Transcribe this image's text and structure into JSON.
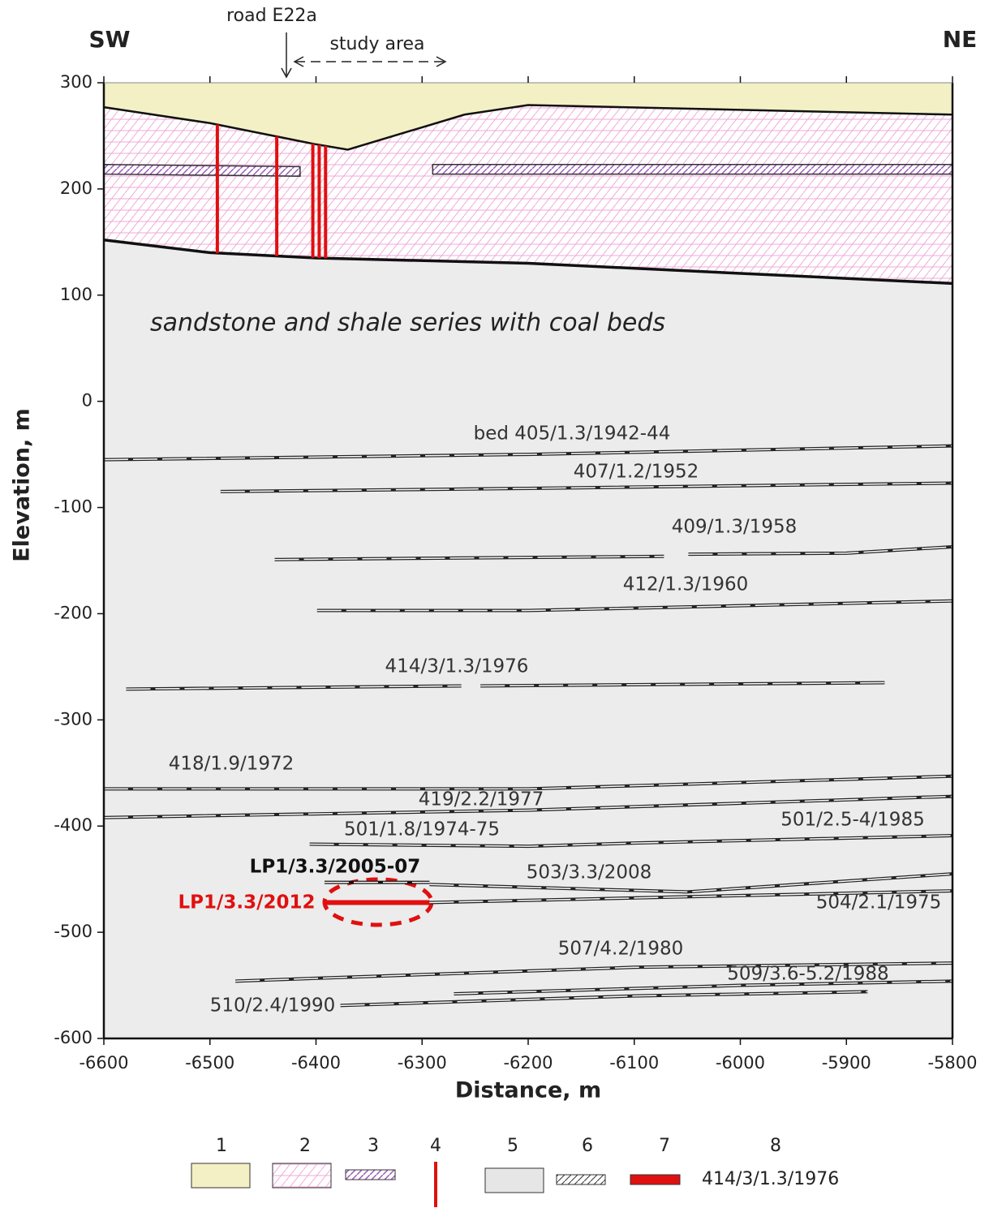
{
  "chart_data": {
    "type": "cross-section",
    "x_label": "Distance, m",
    "y_label": "Elevation, m",
    "left_label": "SW",
    "right_label": "NE",
    "road_label": "road E22a",
    "study_area_label": "study area",
    "series_label": "sandstone and shale series with coal beds",
    "xlim": [
      -6600,
      -5800
    ],
    "ylim": [
      -600,
      300
    ],
    "xticks": [
      -6600,
      -6500,
      -6400,
      -6300,
      -6200,
      -6100,
      -6000,
      -5900,
      -5800
    ],
    "yticks": [
      -600,
      -500,
      -400,
      -300,
      -200,
      -100,
      0,
      100,
      200,
      300
    ],
    "ground_surface": {
      "x": [
        -6600,
        -6500,
        -6400,
        -6370,
        -6260,
        -6200,
        -5800
      ],
      "values": [
        277,
        262,
        242,
        237,
        270,
        279,
        270
      ]
    },
    "layer_base": {
      "x": [
        -6600,
        -6500,
        -6400,
        -6200,
        -5800
      ],
      "values": [
        152,
        140,
        135,
        130,
        111
      ]
    },
    "sandstone_bands": [
      {
        "x": [
          -6600,
          -6415
        ],
        "top": [
          223,
          221
        ],
        "bottom": [
          214,
          212
        ]
      },
      {
        "x": [
          -6290,
          -5800
        ],
        "top": [
          223,
          223
        ],
        "bottom": [
          214,
          214
        ]
      }
    ],
    "boreholes": {
      "x": [
        -6493,
        -6437,
        -6403,
        -6397,
        -6391
      ]
    },
    "series": [
      {
        "name": "bed 405/1.3/1942-44",
        "color": "#222222",
        "x": [
          -6600,
          -6200,
          -5800
        ],
        "values": [
          -55,
          -50,
          -42
        ]
      },
      {
        "name": "407/1.2/1952",
        "color": "#222222",
        "x": [
          -6490,
          -6200,
          -5800
        ],
        "values": [
          -85,
          -82,
          -77
        ]
      },
      {
        "name": "409/1.3/1958",
        "color": "#222222",
        "x": [
          -6439,
          -6072,
          -6060,
          -6049,
          -5900,
          -5800
        ],
        "values": [
          -149,
          -146,
          null,
          -144,
          -143,
          -137
        ]
      },
      {
        "name": "412/1.3/1960",
        "color": "#222222",
        "x": [
          -6399,
          -6200,
          -5800
        ],
        "values": [
          -197,
          -197,
          -188
        ]
      },
      {
        "name": "414/3/1.3/1976",
        "color": "#222222",
        "x": [
          -6579,
          -6263,
          -6255,
          -6245,
          -5864
        ],
        "values": [
          -271,
          -268,
          null,
          -268,
          -265
        ]
      },
      {
        "name": "418/1.9/1972",
        "color": "#222222",
        "x": [
          -6600,
          -6200,
          -5800
        ],
        "values": [
          -365,
          -365,
          -353
        ]
      },
      {
        "name": "419/2.2/1977",
        "color": "#222222",
        "x": [
          -6600,
          -6200,
          -5800
        ],
        "values": [
          -392,
          -385,
          -372
        ]
      },
      {
        "name": "501/1.8/1974-75",
        "color": "#222222",
        "x": [
          -6406,
          -6200,
          -6100
        ],
        "values": [
          -417,
          -419,
          -416
        ]
      },
      {
        "name": "501/2.5-4/1985",
        "color": "#222222",
        "x": [
          -6100,
          -5800
        ],
        "values": [
          -416,
          -409
        ]
      },
      {
        "name": "LP1/3.3/2005-07",
        "color": "#111111",
        "bold": true,
        "x": [
          -6392,
          -6293
        ],
        "values": [
          -453,
          -453
        ]
      },
      {
        "name": "503/3.3/2008",
        "color": "#222222",
        "x": [
          -6293,
          -6050,
          -5800
        ],
        "values": [
          -455,
          -462,
          -445
        ]
      },
      {
        "name": "LP1/3.3/2012",
        "color": "#e01010",
        "bold": true,
        "x": [
          -6392,
          -6293
        ],
        "values": [
          -472,
          -472
        ]
      },
      {
        "name": "504/2.1/1975",
        "color": "#222222",
        "x": [
          -6293,
          -5800
        ],
        "values": [
          -472,
          -461
        ]
      },
      {
        "name": "507/4.2/1980",
        "color": "#222222",
        "x": [
          -6476,
          -6100,
          -5800
        ],
        "values": [
          -546,
          -533,
          -529
        ]
      },
      {
        "name": "509/3.6-5.2/1988",
        "color": "#222222",
        "x": [
          -6270,
          -6000,
          -5800
        ],
        "values": [
          -558,
          -550,
          -546
        ]
      },
      {
        "name": "510/2.4/1990",
        "color": "#222222",
        "x": [
          -6377,
          -6100,
          -5880
        ],
        "values": [
          -569,
          -560,
          -556
        ]
      }
    ],
    "legend": {
      "items": [
        "1",
        "2",
        "3",
        "4",
        "5",
        "6",
        "7",
        "8"
      ],
      "example": "414/3/1.3/1976"
    }
  }
}
